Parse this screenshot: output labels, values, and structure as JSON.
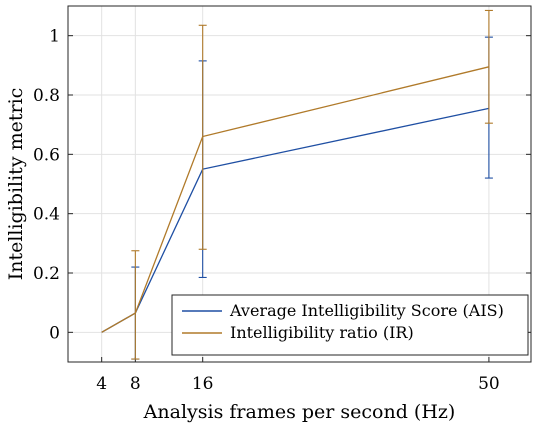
{
  "chart_data": {
    "type": "line",
    "xlabel": "Analysis frames per second (Hz)",
    "ylabel": "Intelligibility metric",
    "x": [
      4,
      8,
      16,
      50
    ],
    "xticks": [
      "4",
      "8",
      "16",
      "50"
    ],
    "yticks": [
      "0",
      "0.2",
      "0.4",
      "0.6",
      "0.8",
      "1"
    ],
    "xlim": [
      0,
      55
    ],
    "ylim": [
      -0.1,
      1.1
    ],
    "grid": true,
    "legend_position": "lower-right",
    "series": [
      {
        "name": "Average Intelligibility Score (AIS)",
        "color": "#1f4fa3",
        "values": [
          0,
          0.065,
          0.55,
          0.755
        ],
        "error_lower": [
          null,
          -0.09,
          0.185,
          0.52
        ],
        "error_upper": [
          null,
          0.22,
          0.915,
          0.995
        ]
      },
      {
        "name": "Intelligibility ratio (IR)",
        "color": "#b07a2a",
        "values": [
          0,
          0.065,
          0.66,
          0.895
        ],
        "error_lower": [
          null,
          -0.09,
          0.28,
          0.705
        ],
        "error_upper": [
          null,
          0.275,
          1.035,
          1.085
        ]
      }
    ]
  }
}
